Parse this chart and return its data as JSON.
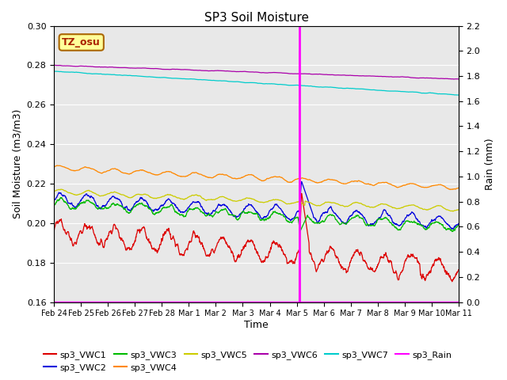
{
  "title": "SP3 Soil Moisture",
  "ylabel_left": "Soil Moisture (m3/m3)",
  "ylabel_right": "Rain (mm)",
  "xlabel": "Time",
  "ylim_left": [
    0.16,
    0.3
  ],
  "ylim_right": [
    0.0,
    2.2
  ],
  "fig_bg_color": "#ffffff",
  "plot_bg_color": "#e8e8e8",
  "xtick_labels": [
    "Feb 24",
    "Feb 25",
    "Feb 26",
    "Feb 27",
    "Feb 28",
    "Mar 1",
    "Mar 2",
    "Mar 3",
    "Mar 4",
    "Mar 5",
    "Mar 6",
    "Mar 7",
    "Mar 8",
    "Mar 9",
    "Mar 10",
    "Mar 11"
  ],
  "series_colors": {
    "sp3_VWC1": "#dd0000",
    "sp3_VWC2": "#0000dd",
    "sp3_VWC3": "#00bb00",
    "sp3_VWC4": "#ff8800",
    "sp3_VWC5": "#cccc00",
    "sp3_VWC6": "#aa00aa",
    "sp3_VWC7": "#00cccc",
    "sp3_Rain": "#ff00ff"
  },
  "annotation_text": "TZ_osu",
  "annotation_fg": "#aa2200",
  "annotation_bg": "#ffff99",
  "annotation_border": "#aa6600"
}
